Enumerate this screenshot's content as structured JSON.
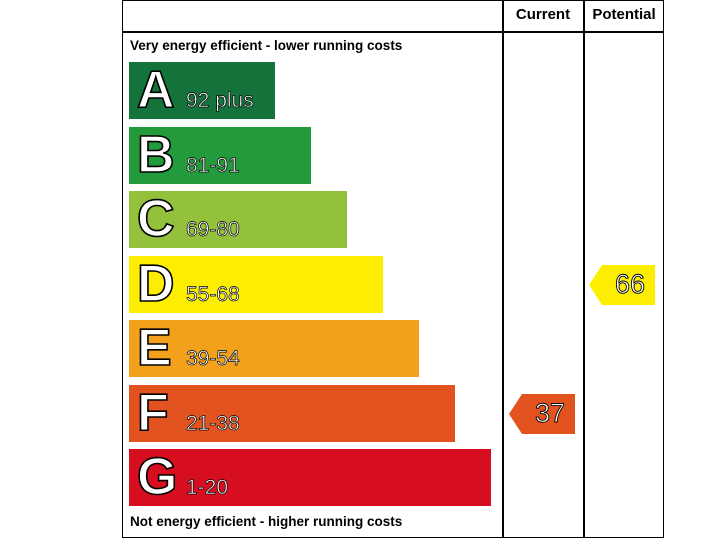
{
  "headers": {
    "current": "Current",
    "potential": "Potential"
  },
  "captions": {
    "top": "Very energy efficient - lower running costs",
    "bottom": "Not energy efficient - higher running costs"
  },
  "chart_data": {
    "type": "bar",
    "bands": [
      {
        "letter": "A",
        "range": "92 plus",
        "color": "#14733a"
      },
      {
        "letter": "B",
        "range": "81-91",
        "color": "#239a3b"
      },
      {
        "letter": "C",
        "range": "69-80",
        "color": "#93c13b"
      },
      {
        "letter": "D",
        "range": "55-68",
        "color": "#fdee00"
      },
      {
        "letter": "E",
        "range": "39-54",
        "color": "#f3a11b"
      },
      {
        "letter": "F",
        "range": "21-38",
        "color": "#e3531f"
      },
      {
        "letter": "G",
        "range": "1-20",
        "color": "#d70d20"
      }
    ],
    "current": {
      "value": 37,
      "band": "F",
      "color": "#e3531f"
    },
    "potential": {
      "value": 66,
      "band": "D",
      "color": "#fdee00"
    }
  }
}
